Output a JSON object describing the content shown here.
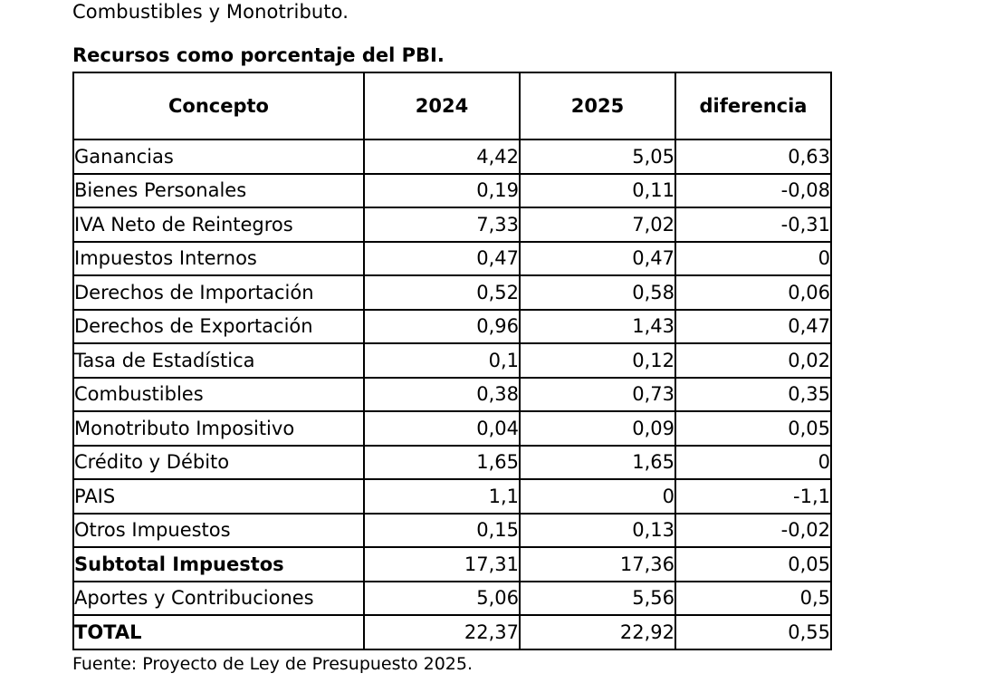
{
  "intro_text": "Combustibles y Monotributo.",
  "table_title": "Recursos como porcentaje del PBI.",
  "headers": [
    "Concepto",
    "2024",
    "2025",
    "diferencia"
  ],
  "rows": [
    {
      "concepto": "Ganancias",
      "y2024": "4,42",
      "y2025": "5,05",
      "diferencia": "0,63",
      "bold": false
    },
    {
      "concepto": "Bienes Personales",
      "y2024": "0,19",
      "y2025": "0,11",
      "diferencia": "-0,08",
      "bold": false
    },
    {
      "concepto": "IVA Neto de Reintegros",
      "y2024": "7,33",
      "y2025": "7,02",
      "diferencia": "-0,31",
      "bold": false
    },
    {
      "concepto": "Impuestos Internos",
      "y2024": "0,47",
      "y2025": "0,47",
      "diferencia": "0",
      "bold": false
    },
    {
      "concepto": "Derechos de Importación",
      "y2024": "0,52",
      "y2025": "0,58",
      "diferencia": "0,06",
      "bold": false
    },
    {
      "concepto": "Derechos de Exportación",
      "y2024": "0,96",
      "y2025": "1,43",
      "diferencia": "0,47",
      "bold": false
    },
    {
      "concepto": "Tasa de Estadística",
      "y2024": "0,1",
      "y2025": "0,12",
      "diferencia": "0,02",
      "bold": false
    },
    {
      "concepto": "Combustibles",
      "y2024": "0,38",
      "y2025": "0,73",
      "diferencia": "0,35",
      "bold": false
    },
    {
      "concepto": "Monotributo Impositivo",
      "y2024": "0,04",
      "y2025": "0,09",
      "diferencia": "0,05",
      "bold": false
    },
    {
      "concepto": "Crédito y Débito",
      "y2024": "1,65",
      "y2025": "1,65",
      "diferencia": "0",
      "bold": false
    },
    {
      "concepto": "PAIS",
      "y2024": "1,1",
      "y2025": "0",
      "diferencia": "-1,1",
      "bold": false
    },
    {
      "concepto": "Otros Impuestos",
      "y2024": "0,15",
      "y2025": "0,13",
      "diferencia": "-0,02",
      "bold": false
    },
    {
      "concepto": "Subtotal Impuestos",
      "y2024": "17,31",
      "y2025": "17,36",
      "diferencia": "0,05",
      "bold": true
    },
    {
      "concepto": "Aportes y Contribuciones",
      "y2024": "5,06",
      "y2025": "5,56",
      "diferencia": "0,5",
      "bold": false
    },
    {
      "concepto": "TOTAL",
      "y2024": "22,37",
      "y2025": "22,92",
      "diferencia": "0,55",
      "bold": true
    }
  ],
  "source_note": "Fuente: Proyecto de Ley de Presupuesto 2025."
}
